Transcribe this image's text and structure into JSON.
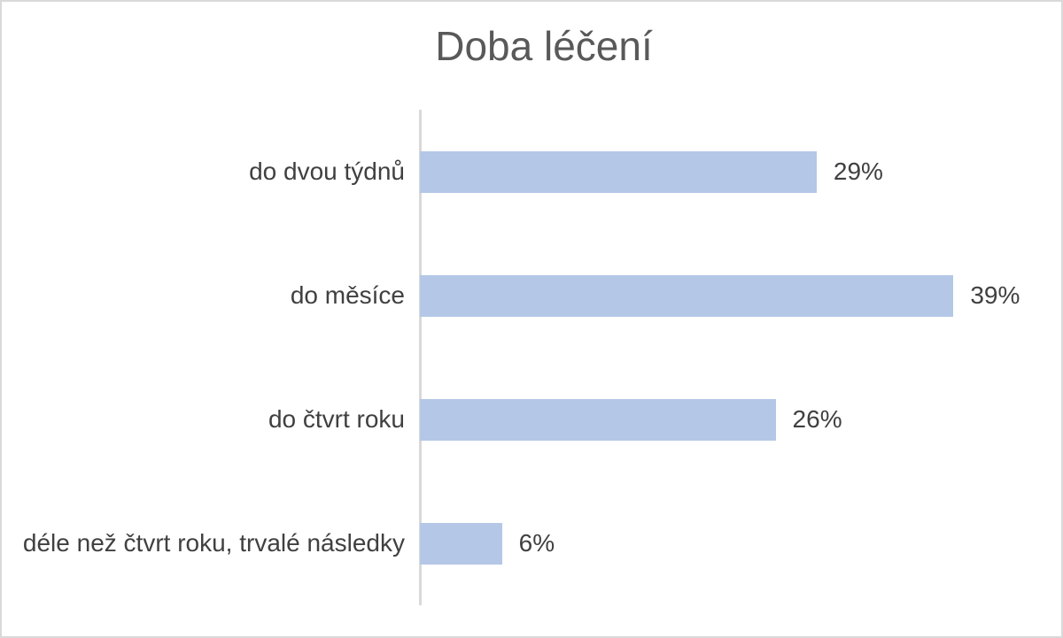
{
  "chart_data": {
    "type": "bar",
    "orientation": "horizontal",
    "title": "Doba léčení",
    "categories": [
      "do dvou týdnů",
      "do měsíce",
      "do čtvrt roku",
      "déle než čtvrt roku, trvalé následky"
    ],
    "values": [
      29,
      39,
      26,
      6
    ],
    "value_labels": [
      "29%",
      "39%",
      "26%",
      "6%"
    ],
    "xlabel": "",
    "ylabel": "",
    "xlim": [
      0,
      45
    ],
    "grid": false,
    "legend": false,
    "data_labels_position": "outside-end",
    "colors": {
      "bar": "#b4c7e7",
      "axis_line": "#d9d9d9",
      "frame_border": "#d9d9d9",
      "label_text": "#404040",
      "title_text": "#595959"
    }
  }
}
